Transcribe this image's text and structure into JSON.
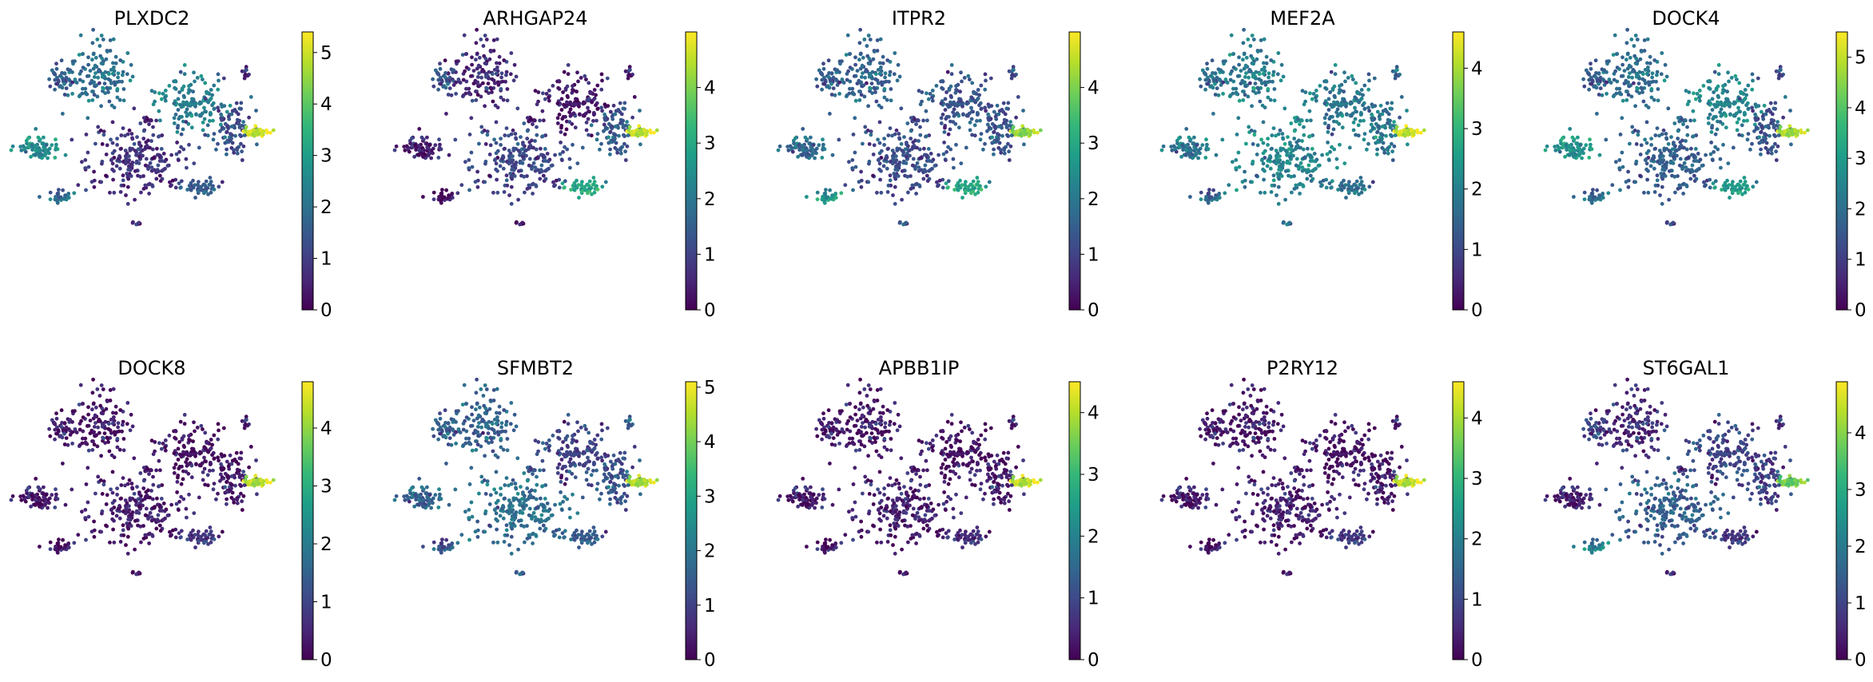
{
  "figure": {
    "colormap": "viridis",
    "colormap_stops": [
      "#440154",
      "#482878",
      "#3e4a89",
      "#31688e",
      "#26828e",
      "#1f9e89",
      "#35b779",
      "#6ece58",
      "#b5de2b",
      "#fde725"
    ],
    "background": "#ffffff"
  },
  "chart_data": [
    {
      "type": "scatter",
      "title": "PLXDC2",
      "colorbar": {
        "vmin": 0,
        "vmax": 5.4,
        "ticks": [
          0,
          1,
          2,
          3,
          4,
          5
        ]
      },
      "cluster_values": [
        2.0,
        2.3,
        1.3,
        0.7,
        1.5,
        0.3,
        2.6,
        2.0,
        1.6,
        5.0,
        0.4,
        0.8
      ]
    },
    {
      "type": "scatter",
      "title": "ARHGAP24",
      "colorbar": {
        "vmin": 0,
        "vmax": 5.0,
        "ticks": [
          0,
          1,
          2,
          3,
          4
        ]
      },
      "cluster_values": [
        0.6,
        0.3,
        1.4,
        1.0,
        1.3,
        0.2,
        0.4,
        0.2,
        3.0,
        4.6,
        0.2,
        0.3
      ]
    },
    {
      "type": "scatter",
      "title": "ITPR2",
      "colorbar": {
        "vmin": 0,
        "vmax": 5.0,
        "ticks": [
          0,
          1,
          2,
          3,
          4
        ]
      },
      "cluster_values": [
        1.6,
        1.3,
        1.3,
        1.1,
        1.4,
        0.9,
        1.7,
        2.7,
        3.0,
        4.2,
        1.0,
        1.5
      ]
    },
    {
      "type": "scatter",
      "title": "MEF2A",
      "colorbar": {
        "vmin": 0,
        "vmax": 4.6,
        "ticks": [
          0,
          1,
          2,
          3,
          4
        ]
      },
      "cluster_values": [
        1.9,
        1.8,
        1.8,
        2.0,
        1.6,
        2.2,
        1.8,
        1.6,
        1.7,
        4.3,
        1.3,
        1.8
      ]
    },
    {
      "type": "scatter",
      "title": "DOCK4",
      "colorbar": {
        "vmin": 0,
        "vmax": 5.5,
        "ticks": [
          0,
          1,
          2,
          3,
          4,
          5
        ]
      },
      "cluster_values": [
        2.0,
        2.5,
        1.4,
        1.6,
        1.5,
        1.8,
        2.8,
        2.0,
        3.0,
        4.8,
        1.0,
        1.2
      ]
    },
    {
      "type": "scatter",
      "title": "DOCK8",
      "colorbar": {
        "vmin": 0,
        "vmax": 4.8,
        "ticks": [
          0,
          1,
          2,
          3,
          4
        ]
      },
      "cluster_values": [
        0.3,
        0.2,
        0.3,
        0.3,
        0.4,
        0.2,
        0.3,
        0.3,
        0.8,
        4.3,
        0.2,
        0.3
      ]
    },
    {
      "type": "scatter",
      "title": "SFMBT2",
      "colorbar": {
        "vmin": 0,
        "vmax": 5.1,
        "ticks": [
          0,
          1,
          2,
          3,
          4,
          5
        ]
      },
      "cluster_values": [
        1.6,
        1.0,
        1.3,
        1.8,
        1.5,
        1.2,
        1.6,
        1.4,
        1.5,
        4.5,
        1.3,
        1.6
      ]
    },
    {
      "type": "scatter",
      "title": "APBB1IP",
      "colorbar": {
        "vmin": 0,
        "vmax": 4.5,
        "ticks": [
          0,
          1,
          2,
          3,
          4
        ]
      },
      "cluster_values": [
        0.3,
        0.2,
        0.3,
        0.3,
        0.3,
        0.2,
        0.3,
        0.3,
        0.6,
        4.1,
        0.2,
        0.3
      ]
    },
    {
      "type": "scatter",
      "title": "P2RY12",
      "colorbar": {
        "vmin": 0,
        "vmax": 4.6,
        "ticks": [
          0,
          1,
          2,
          3,
          4
        ]
      },
      "cluster_values": [
        0.3,
        0.2,
        0.3,
        0.3,
        0.3,
        0.2,
        0.3,
        0.3,
        0.8,
        4.2,
        0.2,
        0.3
      ]
    },
    {
      "type": "scatter",
      "title": "ST6GAL1",
      "colorbar": {
        "vmin": 0,
        "vmax": 4.9,
        "ticks": [
          0,
          1,
          2,
          3,
          4
        ]
      },
      "cluster_values": [
        0.6,
        1.0,
        0.9,
        1.4,
        1.0,
        0.6,
        0.4,
        2.2,
        0.8,
        3.8,
        0.5,
        0.6
      ]
    }
  ]
}
